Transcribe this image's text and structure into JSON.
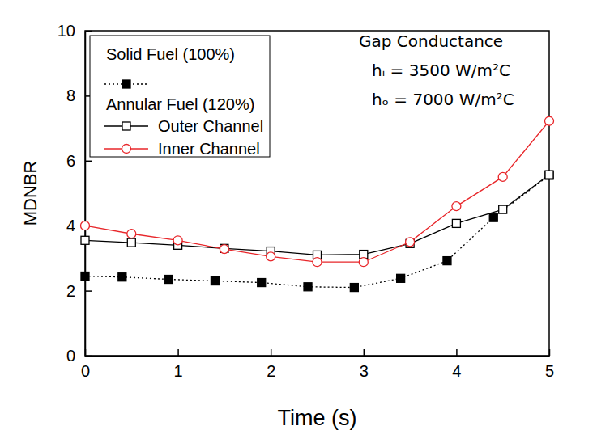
{
  "chart_data": {
    "type": "line",
    "x_label": "Time (s)",
    "y_label": "MDNBR",
    "xlim": [
      0,
      5
    ],
    "xticks": [
      0,
      1,
      2,
      3,
      4,
      5
    ],
    "ylim": [
      0,
      10
    ],
    "yticks": [
      0,
      2,
      4,
      6,
      8,
      10
    ],
    "legend": "upper left",
    "legend_heading": "Annular Fuel (120%)",
    "annotations": [
      "Gap Conductance",
      "hᵢ = 3500 W/m²C",
      "hₒ = 7000 W/m²C"
    ],
    "series": [
      {
        "name": "Solid Fuel (100%)",
        "color": "#000000",
        "marker": "square",
        "line_style": "dotted",
        "x": [
          0,
          0.4,
          0.9,
          1.4,
          1.9,
          2.4,
          2.9,
          3.4,
          3.9,
          4.4,
          5
        ],
        "values": [
          2.45,
          2.42,
          2.35,
          2.3,
          2.25,
          2.12,
          2.1,
          2.38,
          2.92,
          4.25,
          5.55
        ]
      },
      {
        "name": "Outer Channel",
        "color": "#000000",
        "marker": "square-open",
        "line_style": "solid",
        "x": [
          0,
          0.5,
          1,
          1.5,
          2,
          2.5,
          3,
          3.5,
          4,
          4.5,
          5
        ],
        "values": [
          3.55,
          3.48,
          3.4,
          3.3,
          3.22,
          3.1,
          3.12,
          3.45,
          4.07,
          4.5,
          5.57
        ]
      },
      {
        "name": "Inner Channel",
        "color": "#e8262a",
        "marker": "circle-open",
        "line_style": "solid",
        "x": [
          0,
          0.5,
          1,
          1.5,
          2,
          2.5,
          3,
          3.5,
          4,
          4.5,
          5
        ],
        "values": [
          4.0,
          3.75,
          3.55,
          3.28,
          3.05,
          2.88,
          2.88,
          3.5,
          4.6,
          5.5,
          7.22
        ]
      }
    ]
  }
}
